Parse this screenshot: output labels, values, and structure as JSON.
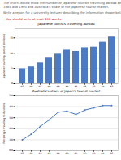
{
  "annotations": [
    {
      "text": "The charts below show the number of Japanese tourists travelling abroad between",
      "color": "#555555"
    },
    {
      "text": "1985 and 1995 and Australia's share of the Japanese tourist market.",
      "color": "#555555"
    },
    {
      "text": "Write a report for a university lecturer describing the information shown below.",
      "color": "#555555"
    },
    {
      "text": "• You should write at least 150 words.",
      "color": "#cc0000"
    }
  ],
  "chart_data": [
    {
      "type": "bar",
      "title": "Japanese tourists travelling abroad",
      "y_label": "Japanese travelling abroad (millions)",
      "categories": [
        "85",
        "86",
        "87",
        "88",
        "89",
        "90",
        "91",
        "92",
        "93",
        "94",
        "95"
      ],
      "values": [
        4.9,
        5.5,
        6.8,
        8.4,
        9.7,
        11.0,
        10.6,
        11.8,
        12.0,
        13.6,
        15.3
      ],
      "color": "#4a7bc4",
      "ylim": [
        0,
        18
      ],
      "yticks": [
        0,
        5,
        10,
        15
      ],
      "grid": true
    },
    {
      "type": "line",
      "title": "Australia's share of Japan's tourist market",
      "y_label": "Percentage travelling to Australia",
      "categories": [
        "85",
        "86",
        "87",
        "88",
        "89",
        "90",
        "91",
        "92",
        "93",
        "94",
        "95"
      ],
      "values": [
        1.0,
        1.5,
        2.2,
        2.8,
        3.5,
        3.6,
        3.3,
        3.7,
        3.9,
        4.1,
        4.1
      ],
      "color": "#4a7bc4",
      "marker": "circle",
      "ylim": [
        0,
        5
      ],
      "yticks": [
        0,
        1,
        2,
        3,
        4,
        5
      ],
      "grid": true
    }
  ]
}
